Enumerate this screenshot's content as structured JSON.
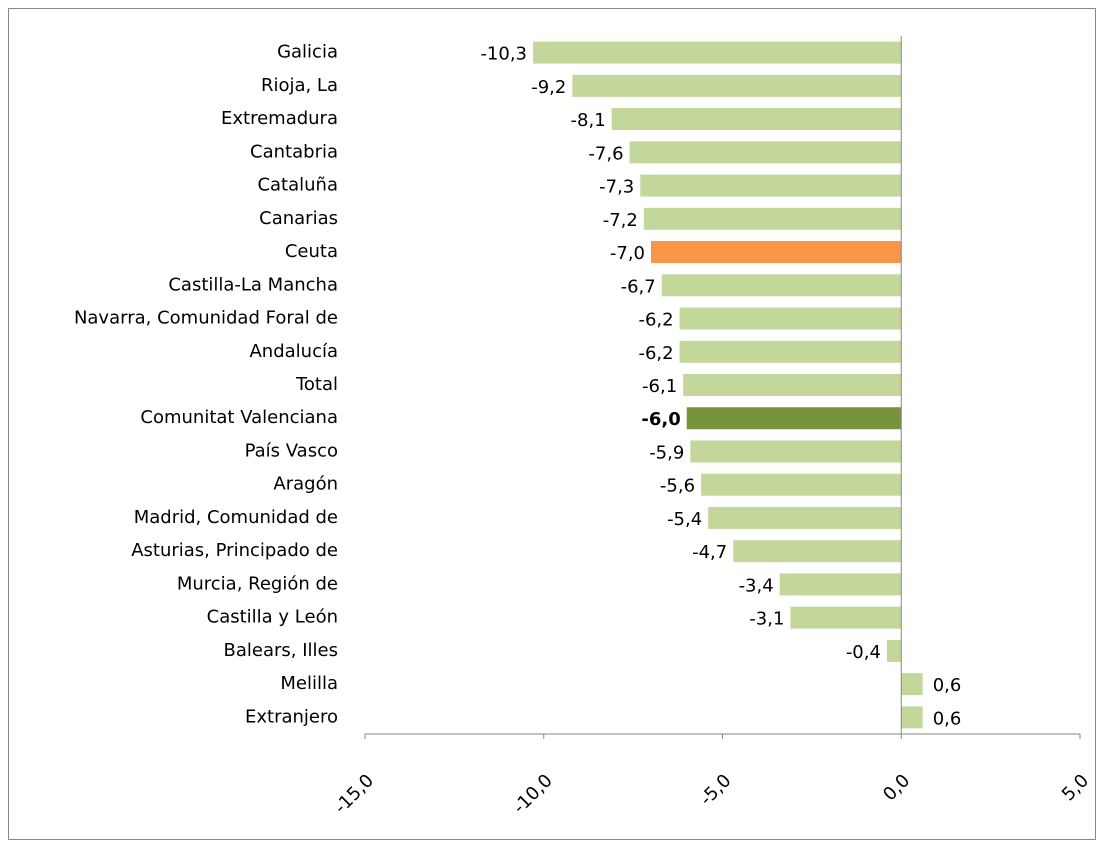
{
  "chart_data": {
    "type": "hbar",
    "categories": [
      "Galicia",
      "Rioja, La",
      "Extremadura",
      "Cantabria",
      "Cataluña",
      "Canarias",
      "Ceuta",
      "Castilla-La Mancha",
      "Navarra, Comunidad Foral de",
      "Andalucía",
      "Total",
      "Comunitat Valenciana",
      "País Vasco",
      "Aragón",
      "Madrid, Comunidad de",
      "Asturias, Principado de",
      "Murcia, Región de",
      "Castilla y León",
      "Balears, Illes",
      "Melilla",
      "Extranjero"
    ],
    "values": [
      -10.3,
      -9.2,
      -8.1,
      -7.6,
      -7.3,
      -7.2,
      -7.0,
      -6.7,
      -6.2,
      -6.2,
      -6.1,
      -6.0,
      -5.9,
      -5.6,
      -5.4,
      -4.7,
      -3.4,
      -3.1,
      -0.4,
      0.6,
      0.6
    ],
    "value_labels": [
      "-10,3",
      "-9,2",
      "-8,1",
      "-7,6",
      "-7,3",
      "-7,2",
      "-7,0",
      "-6,7",
      "-6,2",
      "-6,2",
      "-6,1",
      "-6,0",
      "-5,9",
      "-5,6",
      "-5,4",
      "-4,7",
      "-3,4",
      "-3,1",
      "-0,4",
      "0,6",
      "0,6"
    ],
    "colors": [
      "#c4d79b",
      "#c4d79b",
      "#c4d79b",
      "#c4d79b",
      "#c4d79b",
      "#c4d79b",
      "#f79646",
      "#c4d79b",
      "#c4d79b",
      "#c4d79b",
      "#c4d79b",
      "#77933c",
      "#c4d79b",
      "#c4d79b",
      "#c4d79b",
      "#c4d79b",
      "#c4d79b",
      "#c4d79b",
      "#c4d79b",
      "#c4d79b",
      "#c4d79b"
    ],
    "bold_labels": [
      false,
      false,
      false,
      false,
      false,
      false,
      false,
      false,
      false,
      false,
      false,
      true,
      false,
      false,
      false,
      false,
      false,
      false,
      false,
      false,
      false
    ],
    "xlim": [
      -15,
      5
    ],
    "xticks": [
      {
        "value": -15,
        "label": "-15,0"
      },
      {
        "value": -10,
        "label": "-10,0"
      },
      {
        "value": -5,
        "label": "-5,0"
      },
      {
        "value": 0,
        "label": "0,0"
      },
      {
        "value": 5,
        "label": "5,0"
      }
    ]
  }
}
